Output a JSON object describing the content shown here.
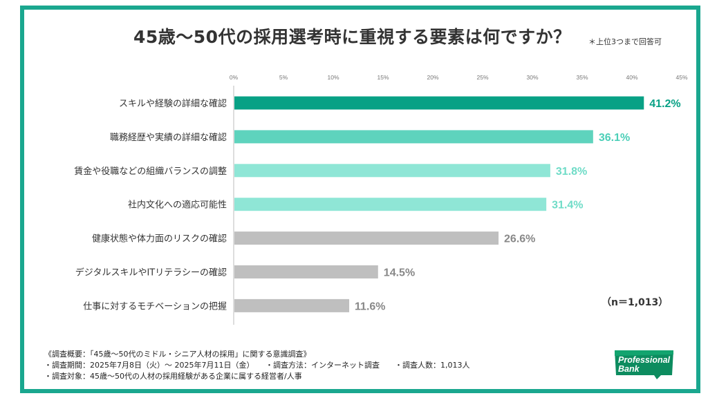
{
  "title": "45歳〜50代の採用選考時に重視する要素は何ですか？",
  "note": "＊上位3つまで回答可",
  "n_label": "（n＝1,013）",
  "colors": {
    "frame": "#1aa78f",
    "rank1": "#08a185",
    "rank2": "#5ed3bd",
    "rank3": "#8fe6d6",
    "other": "#bfbfbf",
    "label_rank1": "#08a185",
    "label_rank2": "#4ccfb8",
    "label_rank3": "#6fdcc7",
    "label_other": "#888888"
  },
  "footnote": [
    "《調査概要：「45歳〜50代のミドル・シニア人材の採用」に関する意識調査》",
    "・調査期間：2025年7月8日（火）〜 2025年7月11日（金）　　・調査方法：インターネット調査　　・調査人数：1,013人",
    "・調査対象：45歳〜50代の人材の採用経験がある企業に属する経営者/人事"
  ],
  "logo": {
    "line1": "Professional",
    "line2": "Bank"
  },
  "chart_data": {
    "type": "bar",
    "orientation": "horizontal",
    "categories": [
      "スキルや経験の詳細な確認",
      "職務経歴や実績の詳細な確認",
      "賃金や役職などの組織バランスの調整",
      "社内文化への適応可能性",
      "健康状態や体力面のリスクの確認",
      "デジタルスキルやITリテラシーの確認",
      "仕事に対するモチベーションの把握"
    ],
    "values": [
      41.2,
      36.1,
      31.8,
      31.4,
      26.6,
      14.5,
      11.6
    ],
    "value_labels": [
      "41.2%",
      "36.1%",
      "31.8%",
      "31.4%",
      "26.6%",
      "14.5%",
      "11.6%"
    ],
    "bar_color_keys": [
      "rank1",
      "rank2",
      "rank3",
      "rank3",
      "other",
      "other",
      "other"
    ],
    "x_ticks": [
      "0%",
      "5%",
      "10%",
      "15%",
      "20%",
      "25%",
      "30%",
      "35%",
      "40%",
      "45%"
    ],
    "xlim": [
      0,
      45
    ],
    "grid": false,
    "legend": "none"
  }
}
